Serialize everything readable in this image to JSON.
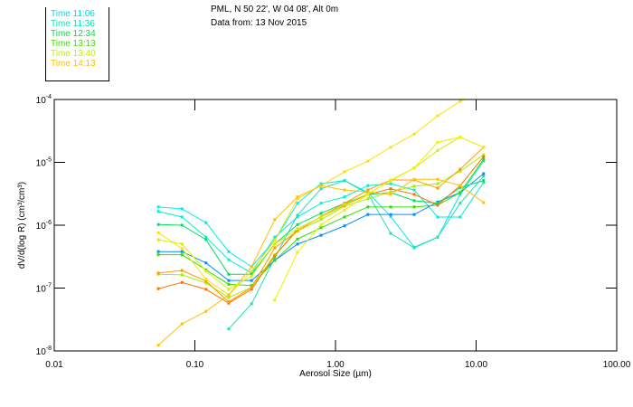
{
  "header": {
    "location": "PML, N 50 22', W 04 08', Alt 0m",
    "date_line": "Data from: 13 Nov 2015"
  },
  "legend": [
    {
      "label": "Time 11:06",
      "color": "#00d8f0"
    },
    {
      "label": "Time 11:36",
      "color": "#00e8b0"
    },
    {
      "label": "Time 12:34",
      "color": "#00e040"
    },
    {
      "label": "Time 13:13",
      "color": "#40e000"
    },
    {
      "label": "Time 13:40",
      "color": "#c0f000"
    },
    {
      "label": "Time 14:13",
      "color": "#ffc000"
    }
  ],
  "chart_data": {
    "type": "line",
    "xlabel": "Aerosol Size (µm)",
    "ylabel": "dV/d(log R) (cm³/cm³)",
    "xscale": "log",
    "yscale": "log",
    "xlim": [
      0.01,
      100
    ],
    "ylim_log10": [
      -8,
      -4
    ],
    "x_ticks": [
      {
        "v": 0.01,
        "label": "0.01"
      },
      {
        "v": 0.1,
        "label": "0.10"
      },
      {
        "v": 1,
        "label": "1.00"
      },
      {
        "v": 10,
        "label": "10.00"
      },
      {
        "v": 100,
        "label": "100.00"
      }
    ],
    "y_ticks": [
      {
        "e": -4,
        "base": "10",
        "exp": "-4"
      },
      {
        "e": -5,
        "base": "10",
        "exp": "-5"
      },
      {
        "e": -6,
        "base": "10",
        "exp": "-6"
      },
      {
        "e": -7,
        "base": "10",
        "exp": "-7"
      },
      {
        "e": -8,
        "base": "10",
        "exp": "-8"
      }
    ],
    "x": [
      0.055,
      0.081,
      0.12,
      0.174,
      0.253,
      0.37,
      0.537,
      0.79,
      1.16,
      1.7,
      2.47,
      3.63,
      5.33,
      7.7,
      11.3
    ],
    "series": [
      {
        "color": "#00e8f0",
        "log10_values": [
          -5.71,
          -5.74,
          -5.96,
          -6.42,
          -6.66,
          -6.24,
          -5.65,
          -5.34,
          -5.29,
          -5.48,
          -5.86,
          -6.35,
          -6.19,
          -5.51,
          -4.98
        ]
      },
      {
        "color": "#00f0d0",
        "log10_values": [
          -5.78,
          -5.87,
          -6.19,
          -6.55,
          -6.76,
          -6.19,
          -5.87,
          -5.65,
          -5.55,
          -5.37,
          -5.34,
          -5.44,
          -5.87,
          -5.87,
          -5.32
        ]
      },
      {
        "color": "#20e0b0",
        "log10_values": [
          null,
          null,
          null,
          -7.65,
          -7.25,
          -6.52,
          -5.84,
          -5.42,
          -5.29,
          -5.5,
          -6.13,
          -6.36,
          -6.19,
          -5.65,
          -5.22
        ]
      },
      {
        "color": "#0090ff",
        "log10_values": [
          -6.42,
          -6.42,
          -6.6,
          -6.88,
          -6.88,
          -6.56,
          -6.3,
          -6.16,
          -6.01,
          -5.83,
          -5.83,
          -5.83,
          -5.63,
          -5.48,
          -5.18
        ]
      },
      {
        "color": "#00e060",
        "log10_values": [
          -5.99,
          -6.0,
          -6.23,
          -6.78,
          -6.78,
          -6.3,
          -5.99,
          -5.81,
          -5.65,
          -5.51,
          -5.48,
          -5.61,
          -5.65,
          -5.4,
          -5.29
        ]
      },
      {
        "color": "#30e000",
        "log10_values": [
          -6.47,
          -6.47,
          -6.71,
          -6.94,
          -6.96,
          -6.56,
          -6.22,
          -6.04,
          -5.87,
          -5.71,
          -5.71,
          -5.71,
          -5.68,
          -5.48,
          -4.95
        ]
      },
      {
        "color": "#a8f000",
        "log10_values": [
          -6.78,
          -6.79,
          -6.92,
          -7.15,
          -6.99,
          -6.47,
          -6.09,
          -5.91,
          -5.7,
          -5.58,
          -5.47,
          -5.38,
          -5.34,
          -5.14,
          -4.88
        ]
      },
      {
        "color": "#ff7000",
        "log10_values": [
          -7.01,
          -6.91,
          -7.02,
          -7.24,
          -7.02,
          -6.49,
          -6.06,
          -5.87,
          -5.68,
          -5.51,
          -5.42,
          -5.51,
          -5.68,
          -5.37,
          -4.91
        ]
      },
      {
        "color": "#ff9800",
        "log10_values": [
          -6.76,
          -6.72,
          -6.89,
          -7.22,
          -6.99,
          -6.36,
          -6.09,
          -5.86,
          -5.65,
          -5.44,
          -5.28,
          -5.28,
          -5.41,
          -5.11,
          -4.76
        ]
      },
      {
        "color": "#ffe000",
        "log10_values": [
          -6.12,
          -6.37,
          -6.86,
          -7.11,
          -6.73,
          -6.24,
          -5.58,
          -5.37,
          -5.15,
          -4.98,
          -4.76,
          -4.55,
          -4.26,
          -4.03,
          -3.88
        ]
      },
      {
        "color": "#ffc000",
        "log10_values": [
          -7.91,
          -7.57,
          -7.37,
          -7.11,
          -6.66,
          -5.91,
          -5.55,
          -5.37,
          -5.44,
          -5.47,
          -5.51,
          -5.27,
          -5.27,
          -5.37,
          -5.64
        ]
      },
      {
        "color": "#d0f000",
        "log10_values": [
          -6.23,
          -6.3,
          -6.73,
          -7.02,
          -6.81,
          -6.3,
          -6.06,
          -5.87,
          -5.67,
          -5.5,
          -5.29,
          -5.09,
          -4.81,
          -4.6,
          -4.76
        ]
      },
      {
        "color": "#f0f000",
        "log10_values": [
          null,
          null,
          null,
          null,
          null,
          -7.19,
          -6.43,
          -5.99,
          -5.76,
          -5.51,
          -5.28,
          -5.09,
          -4.68,
          -4.6,
          -4.76
        ]
      }
    ]
  }
}
